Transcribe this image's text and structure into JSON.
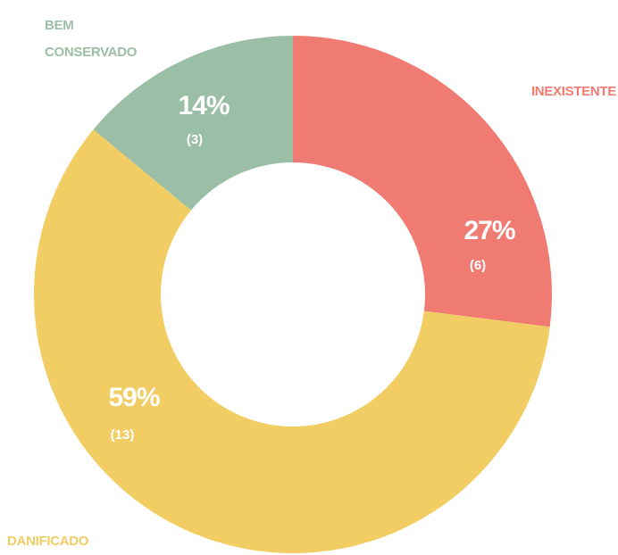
{
  "chart_data": {
    "type": "donut",
    "categories": [
      "INEXISTENTE",
      "DANIFICADO",
      "BEM CONSERVADO"
    ],
    "values": [
      27,
      59,
      14
    ],
    "value_labels": [
      "27%",
      "59%",
      "14%"
    ],
    "counts": [
      6,
      13,
      3
    ],
    "count_labels": [
      "(6)",
      "(13)",
      "(3)"
    ],
    "colors": [
      "#f07b72",
      "#f2cd63",
      "#9bbfa6"
    ]
  }
}
